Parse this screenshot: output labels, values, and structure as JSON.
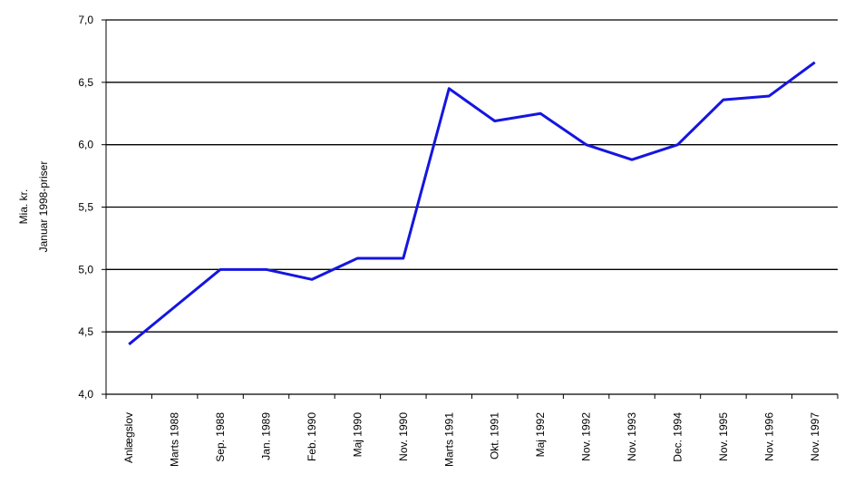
{
  "chart_data": {
    "type": "line",
    "y_label": [
      "Mia. kr.",
      "Januar 1998-priser"
    ],
    "categories": [
      "Anlægslov",
      "Marts 1988",
      "Sep. 1988",
      "Jan. 1989",
      "Feb. 1990",
      "Maj 1990",
      "Nov. 1990",
      "Marts 1991",
      "Okt. 1991",
      "Maj 1992",
      "Nov. 1992",
      "Nov. 1993",
      "Dec. 1994",
      "Nov. 1995",
      "Nov. 1996",
      "Nov. 1997"
    ],
    "series": [
      {
        "color": "#1515e0",
        "values": [
          4.4,
          4.7,
          5.0,
          5.0,
          4.92,
          5.09,
          5.09,
          6.45,
          6.19,
          6.25,
          6.0,
          5.88,
          6.0,
          6.36,
          6.39,
          6.66
        ]
      }
    ],
    "ylim": [
      4.0,
      7.0
    ],
    "yticks": [
      {
        "value": 4.0,
        "label": "4,0"
      },
      {
        "value": 4.5,
        "label": "4,5"
      },
      {
        "value": 5.0,
        "label": "5,0"
      },
      {
        "value": 5.5,
        "label": "5,5"
      },
      {
        "value": 6.0,
        "label": "6,0"
      },
      {
        "value": 6.5,
        "label": "6,5"
      },
      {
        "value": 7.0,
        "label": "7,0"
      }
    ],
    "grid": true
  }
}
